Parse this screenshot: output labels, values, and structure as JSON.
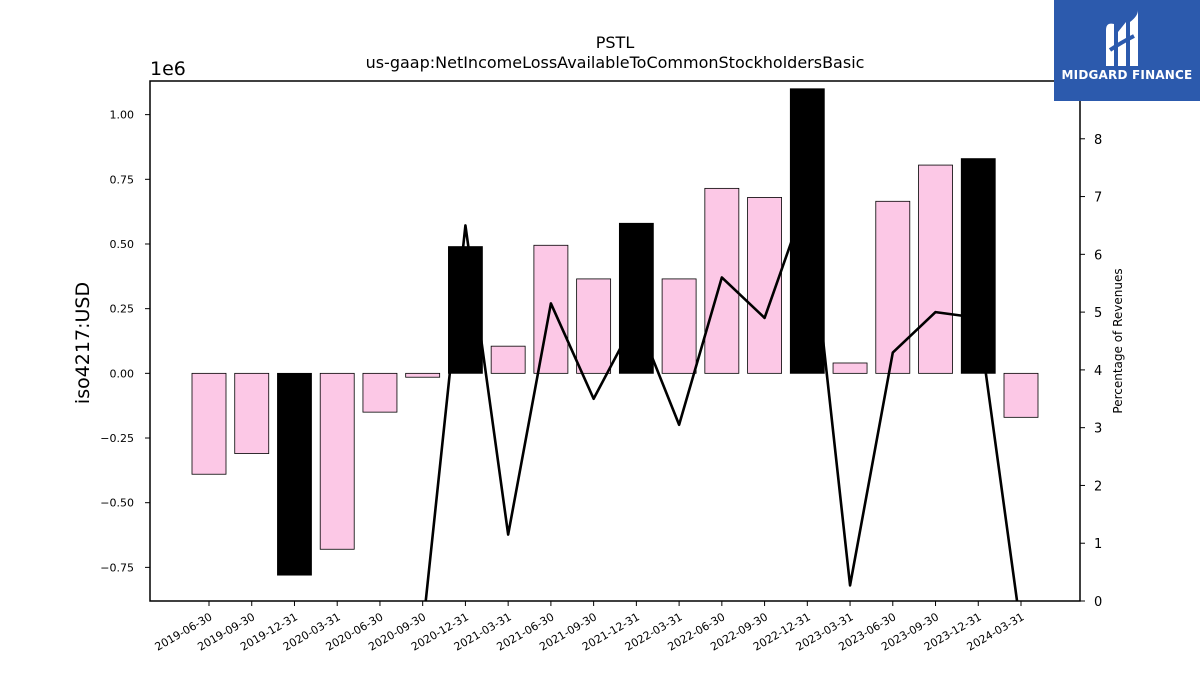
{
  "chart_data": {
    "type": "bar",
    "title": "PSTL",
    "subtitle": "us-gaap:NetIncomeLossAvailableToCommonStockholdersBasic",
    "ylabel": "iso4217:USD",
    "y_multiplier": "1e6",
    "y2label": "Percentage of Revenues",
    "ylim": [
      -0.88,
      1.13
    ],
    "y2lim": [
      0,
      9
    ],
    "yticks": [
      "−0.75",
      "−0.50",
      "−0.25",
      "0.00",
      "0.25",
      "0.50",
      "0.75",
      "1.00"
    ],
    "y2ticks": [
      "0",
      "1",
      "2",
      "3",
      "4",
      "5",
      "6",
      "7",
      "8"
    ],
    "categories": [
      "2019-06-30",
      "2019-09-30",
      "2019-12-31",
      "2020-03-31",
      "2020-06-30",
      "2020-09-30",
      "2020-12-31",
      "2021-03-31",
      "2021-06-30",
      "2021-09-30",
      "2021-12-31",
      "2022-03-31",
      "2022-06-30",
      "2022-09-30",
      "2022-12-31",
      "2023-03-31",
      "2023-06-30",
      "2023-09-30",
      "2023-12-31",
      "2024-03-31"
    ],
    "series": [
      {
        "type": "bar",
        "axis": "left",
        "values": [
          -0.39,
          -0.31,
          -0.78,
          -0.68,
          -0.15,
          -0.015,
          0.49,
          0.105,
          0.495,
          0.365,
          0.58,
          0.365,
          0.715,
          0.68,
          1.1,
          0.04,
          0.665,
          0.805,
          0.83,
          -0.17
        ],
        "colors": [
          "#fcc8e6",
          "#fcc8e6",
          "#000000",
          "#fcc8e6",
          "#fcc8e6",
          "#fcc8e6",
          "#000000",
          "#fcc8e6",
          "#fcc8e6",
          "#fcc8e6",
          "#000000",
          "#fcc8e6",
          "#fcc8e6",
          "#fcc8e6",
          "#000000",
          "#fcc8e6",
          "#fcc8e6",
          "#fcc8e6",
          "#000000",
          "#fcc8e6"
        ]
      },
      {
        "type": "line",
        "axis": "right",
        "color": "#000000",
        "values": [
          null,
          null,
          null,
          null,
          null,
          -0.5,
          6.5,
          1.15,
          5.15,
          3.5,
          4.9,
          3.05,
          5.6,
          4.9,
          7.0,
          0.27,
          4.3,
          5.0,
          4.9,
          -0.5
        ]
      }
    ],
    "grid": false
  },
  "logo": {
    "text": "MIDGARD FINANCE",
    "color": "#2c5aad"
  }
}
